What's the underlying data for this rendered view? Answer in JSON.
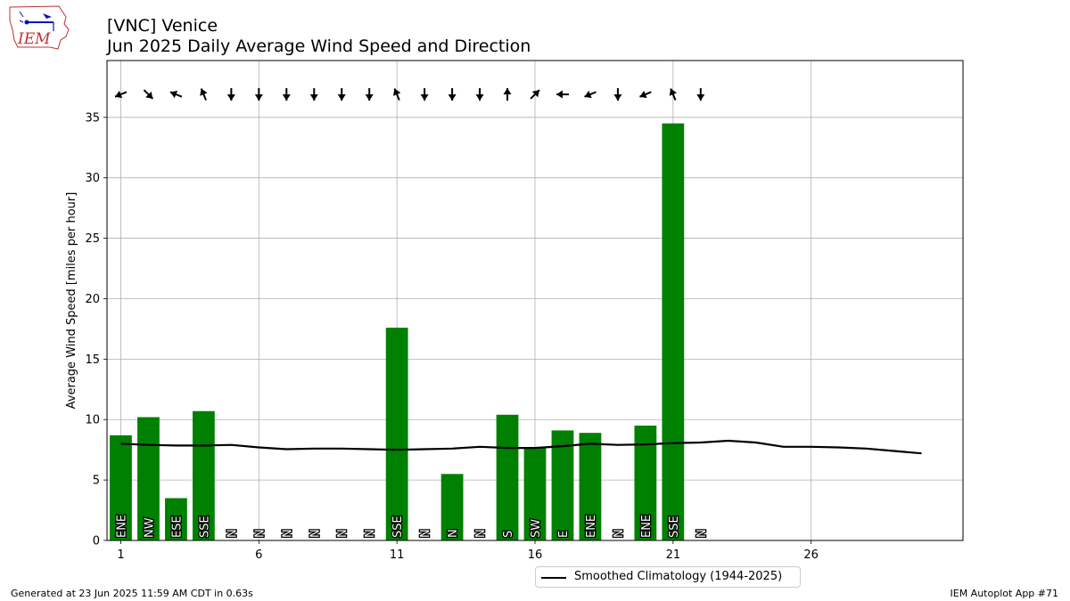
{
  "header": {
    "title_line1": "[VNC] Venice",
    "title_line2": "Jun 2025 Daily Average Wind Speed and Direction"
  },
  "logo": {
    "text": "IEM"
  },
  "footer": {
    "left": "Generated at 23 Jun 2025 11:59 AM CDT in 0.63s",
    "right": "IEM Autoplot App #71"
  },
  "legend": {
    "label": "Smoothed Climatology (1944-2025)"
  },
  "colors": {
    "bar": "#008000",
    "climatology": "#000000",
    "grid": "#b0b0b0"
  },
  "chart_data": {
    "type": "bar",
    "ylabel": "Average Wind Speed [miles per hour]",
    "xlabel": "",
    "xlim": [
      0.5,
      31.5
    ],
    "ylim": [
      0,
      39.7
    ],
    "xticks": [
      1,
      6,
      11,
      16,
      21,
      26
    ],
    "yticks": [
      0,
      5,
      10,
      15,
      20,
      25,
      30,
      35
    ],
    "grid": true,
    "legend_position": "bottom-center",
    "series": [
      {
        "type": "bar",
        "days": [
          1,
          2,
          3,
          4,
          5,
          6,
          7,
          8,
          9,
          10,
          11,
          12,
          13,
          14,
          15,
          16,
          17,
          18,
          19,
          20,
          21,
          22
        ],
        "values": [
          8.7,
          10.2,
          3.5,
          10.7,
          0,
          0,
          0,
          0,
          0,
          0,
          17.6,
          0,
          5.5,
          0,
          10.4,
          7.7,
          9.1,
          8.9,
          0,
          9.5,
          34.5,
          0
        ],
        "directions": [
          "ENE",
          "NW",
          "ESE",
          "SSE",
          "N",
          "N",
          "N",
          "N",
          "N",
          "N",
          "SSE",
          "N",
          "N",
          "N",
          "S",
          "SW",
          "E",
          "ENE",
          "N",
          "ENE",
          "SSE",
          "N"
        ],
        "direction_degrees": [
          67.5,
          315,
          112.5,
          157.5,
          0,
          0,
          0,
          0,
          0,
          0,
          157.5,
          0,
          0,
          0,
          180,
          225,
          90,
          67.5,
          0,
          67.5,
          157.5,
          0
        ]
      },
      {
        "name": "Smoothed Climatology (1944-2025)",
        "type": "line",
        "days": [
          1,
          2,
          3,
          4,
          5,
          6,
          7,
          8,
          9,
          10,
          11,
          12,
          13,
          14,
          15,
          16,
          17,
          18,
          19,
          20,
          21,
          22,
          23,
          24,
          25,
          26,
          27,
          28,
          29,
          30
        ],
        "values": [
          8.0,
          7.9,
          7.85,
          7.85,
          7.9,
          7.7,
          7.55,
          7.6,
          7.6,
          7.55,
          7.5,
          7.55,
          7.6,
          7.75,
          7.65,
          7.65,
          7.8,
          8.0,
          7.9,
          7.95,
          8.05,
          8.1,
          8.25,
          8.1,
          7.75,
          7.75,
          7.7,
          7.6,
          7.4,
          7.2
        ]
      }
    ]
  }
}
